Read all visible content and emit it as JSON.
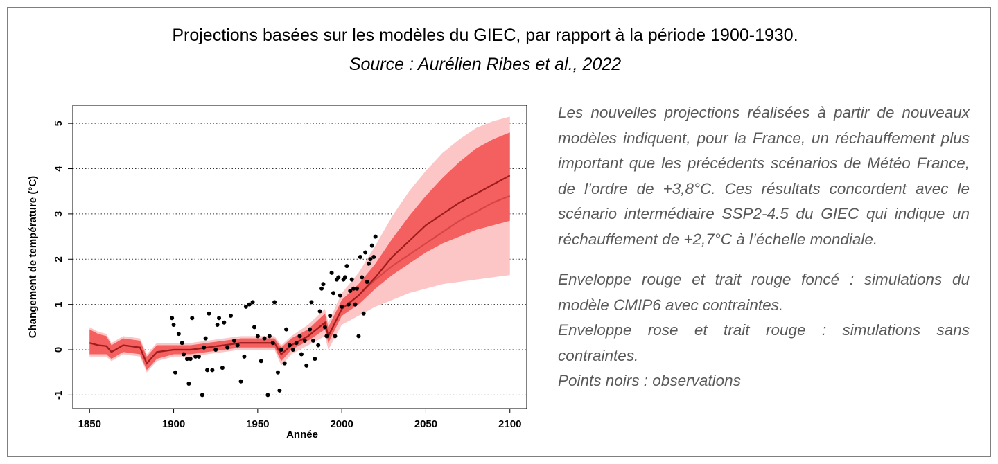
{
  "header": {
    "title": "Projections basées sur les modèles du GIEC, par rapport à la période 1900-1930.",
    "source": "Source : Aurélien Ribes et al., 2022"
  },
  "notes": [
    "Les nouvelles projections réalisées à partir de nouveaux modèles indiquent, pour la France, un réchauffement plus important que les précédents scénarios de Météo France, de l’ordre de +3,8°C. Ces résultats concordent avec le scénario intermédiaire SSP2-4.5 du GIEC qui indique un réchauffement de +2,7°C à l’échelle mondiale.",
    "Enveloppe rouge et trait rouge foncé : simulations du modèle CMIP6 avec contraintes.",
    "Enveloppe rose et trait rouge : simulations sans contraintes.",
    "Points noirs : observations"
  ],
  "chart_data": {
    "type": "line",
    "x_label": "Année",
    "y_label": "Changement de température (°C)",
    "xlim": [
      1840,
      2110
    ],
    "ylim": [
      -1.3,
      5.4
    ],
    "xticks": [
      1850,
      1900,
      1950,
      2000,
      2050,
      2100
    ],
    "yticks": [
      -1,
      0,
      1,
      2,
      3,
      4,
      5
    ],
    "grid": "dotted",
    "x": [
      1850,
      1855,
      1860,
      1863,
      1870,
      1880,
      1884,
      1890,
      1900,
      1910,
      1920,
      1930,
      1940,
      1950,
      1960,
      1964,
      1970,
      1980,
      1990,
      1992,
      2000,
      2010,
      2020,
      2030,
      2040,
      2050,
      2060,
      2070,
      2080,
      2090,
      2100
    ],
    "bands": [
      {
        "color": "#fcc6c6",
        "lower": [
          -0.15,
          -0.15,
          -0.15,
          -0.25,
          -0.1,
          -0.15,
          -0.5,
          -0.25,
          -0.15,
          -0.15,
          -0.1,
          -0.05,
          0.0,
          0.0,
          0.0,
          -0.35,
          -0.1,
          0.1,
          0.3,
          0.0,
          0.55,
          0.75,
          0.95,
          1.1,
          1.25,
          1.35,
          1.45,
          1.5,
          1.55,
          1.6,
          1.65
        ],
        "upper": [
          0.5,
          0.4,
          0.35,
          0.15,
          0.3,
          0.25,
          -0.1,
          0.15,
          0.15,
          0.15,
          0.2,
          0.25,
          0.3,
          0.3,
          0.3,
          0.1,
          0.3,
          0.55,
          0.9,
          0.6,
          1.25,
          1.7,
          2.3,
          2.95,
          3.5,
          3.95,
          4.35,
          4.65,
          4.9,
          5.05,
          5.15
        ]
      },
      {
        "color": "#f45f5f",
        "lower": [
          -0.1,
          -0.1,
          -0.1,
          -0.2,
          -0.05,
          -0.1,
          -0.45,
          -0.2,
          -0.1,
          -0.1,
          -0.05,
          0.0,
          0.05,
          0.05,
          0.05,
          -0.25,
          0.0,
          0.2,
          0.45,
          0.15,
          0.75,
          1.0,
          1.35,
          1.65,
          1.9,
          2.15,
          2.35,
          2.5,
          2.65,
          2.75,
          2.85
        ],
        "upper": [
          0.45,
          0.35,
          0.3,
          0.1,
          0.25,
          0.2,
          -0.15,
          0.1,
          0.1,
          0.1,
          0.15,
          0.2,
          0.25,
          0.25,
          0.25,
          0.05,
          0.25,
          0.45,
          0.8,
          0.5,
          1.1,
          1.45,
          1.9,
          2.45,
          2.95,
          3.4,
          3.8,
          4.15,
          4.45,
          4.65,
          4.8
        ]
      }
    ],
    "series": [
      {
        "color": "#d64545",
        "values": [
          0.15,
          0.1,
          0.08,
          -0.05,
          0.1,
          0.05,
          -0.3,
          -0.05,
          0.0,
          0.0,
          0.05,
          0.1,
          0.15,
          0.15,
          0.15,
          -0.1,
          0.1,
          0.3,
          0.6,
          0.3,
          0.9,
          1.2,
          1.55,
          1.85,
          2.1,
          2.35,
          2.6,
          2.85,
          3.05,
          3.25,
          3.4
        ]
      },
      {
        "color": "#9e1c1c",
        "values": [
          0.15,
          0.1,
          0.08,
          -0.05,
          0.1,
          0.05,
          -0.3,
          -0.05,
          0.0,
          0.0,
          0.05,
          0.1,
          0.15,
          0.15,
          0.15,
          -0.1,
          0.1,
          0.3,
          0.6,
          0.3,
          0.9,
          1.2,
          1.6,
          2.05,
          2.4,
          2.75,
          3.0,
          3.25,
          3.45,
          3.65,
          3.85
        ]
      }
    ],
    "scatter": {
      "color": "#000000",
      "x": [
        1899,
        1900,
        1901,
        1903,
        1905,
        1906,
        1908,
        1909,
        1910,
        1911,
        1913,
        1915,
        1917,
        1918,
        1919,
        1920,
        1921,
        1923,
        1925,
        1926,
        1927,
        1929,
        1930,
        1932,
        1934,
        1936,
        1938,
        1940,
        1942,
        1943,
        1945,
        1947,
        1948,
        1950,
        1952,
        1954,
        1956,
        1957,
        1959,
        1960,
        1962,
        1963,
        1964,
        1966,
        1967,
        1969,
        1971,
        1973,
        1975,
        1976,
        1978,
        1979,
        1981,
        1982,
        1983,
        1984,
        1986,
        1987,
        1988,
        1989,
        1990,
        1991,
        1993,
        1994,
        1995,
        1996,
        1997,
        1998,
        1999,
        2000,
        2001,
        2002,
        2003,
        2004,
        2005,
        2006,
        2007,
        2008,
        2009,
        2010,
        2011,
        2012,
        2013,
        2014,
        2015,
        2016,
        2017,
        2018,
        2019,
        2020
      ],
      "values": [
        0.7,
        0.55,
        -0.5,
        0.35,
        0.15,
        -0.1,
        -0.2,
        -0.75,
        -0.2,
        0.7,
        -0.15,
        -0.15,
        -1.0,
        0.05,
        0.25,
        -0.45,
        0.8,
        -0.45,
        0.0,
        0.55,
        0.7,
        -0.4,
        0.6,
        0.05,
        0.75,
        0.2,
        0.1,
        -0.7,
        -0.15,
        0.95,
        1.0,
        1.05,
        0.5,
        0.3,
        -0.25,
        0.25,
        -1.0,
        0.3,
        0.15,
        1.05,
        -0.5,
        -0.9,
        0.0,
        -0.3,
        0.45,
        0.1,
        0.0,
        0.15,
        0.3,
        -0.1,
        0.2,
        -0.35,
        0.45,
        1.05,
        0.2,
        -0.2,
        0.1,
        0.85,
        1.35,
        1.45,
        0.5,
        0.3,
        0.75,
        1.7,
        1.25,
        0.3,
        1.55,
        1.6,
        1.2,
        0.95,
        1.55,
        1.6,
        1.85,
        1.0,
        1.3,
        1.55,
        1.35,
        1.0,
        1.35,
        0.3,
        2.05,
        1.6,
        0.8,
        2.15,
        1.5,
        1.9,
        2.0,
        2.3,
        2.05,
        2.5
      ]
    }
  }
}
